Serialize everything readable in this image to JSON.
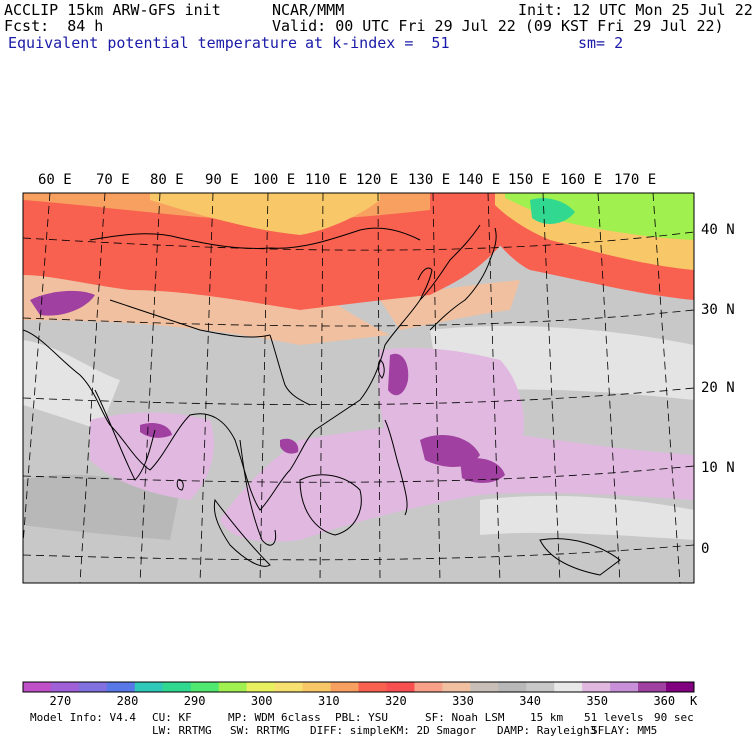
{
  "header": {
    "left1": "ACCLIP 15km ARW-GFS init",
    "center1": "NCAR/MMM",
    "right1": "Init: 12 UTC Mon 25 Jul 22",
    "left2": "Fcst:  84 h",
    "right2": "Valid: 00 UTC Fri 29 Jul 22 (09 KST Fri 29 Jul 22)",
    "field": "Equivalent potential temperature",
    "level": "at k-index =  51",
    "smooth": "sm= 2"
  },
  "map": {
    "lon_labels": [
      "60 E",
      "70 E",
      "80 E",
      "90 E",
      "100 E",
      "110 E",
      "120 E",
      "130 E",
      "140 E",
      "150 E",
      "160 E",
      "170 E"
    ],
    "lat_labels": [
      "40 N",
      "30 N",
      "20 N",
      "10 N",
      "0"
    ]
  },
  "colorbar": {
    "colors": [
      "#c050c8",
      "#a060d8",
      "#8070e0",
      "#5878e8",
      "#30c8b8",
      "#30d890",
      "#50e870",
      "#a0f050",
      "#e8f060",
      "#f8e070",
      "#f8c868",
      "#f8a060",
      "#f86050",
      "#f85050",
      "#f8a088",
      "#f0c0a0",
      "#c8c0b8",
      "#b8b8b8",
      "#c8c8c8",
      "#e8e8e8",
      "#e0b8e0",
      "#c890d8",
      "#a040a0",
      "#800080"
    ],
    "labels": [
      "270",
      "280",
      "290",
      "300",
      "310",
      "320",
      "330",
      "340",
      "350",
      "360"
    ],
    "unit": "K"
  },
  "footer": {
    "line1": [
      {
        "key": "model",
        "text": "Model Info: V4.4"
      },
      {
        "key": "cu",
        "text": "CU: KF"
      },
      {
        "key": "mp",
        "text": "MP: WDM 6class"
      },
      {
        "key": "pbl",
        "text": "PBL: YSU"
      },
      {
        "key": "sf",
        "text": "SF: Noah LSM"
      },
      {
        "key": "res",
        "text": "15 km"
      },
      {
        "key": "levels",
        "text": "51 levels"
      },
      {
        "key": "dt",
        "text": "90 sec"
      }
    ],
    "line2": [
      {
        "key": "lw",
        "text": "LW: RRTMG"
      },
      {
        "key": "sw",
        "text": "SW: RRTMG"
      },
      {
        "key": "diff",
        "text": "DIFF: simple"
      },
      {
        "key": "km",
        "text": "KM: 2D Smagor"
      },
      {
        "key": "damp",
        "text": "DAMP: Rayleigh3"
      },
      {
        "key": "sflay",
        "text": "SFLAY: MM5"
      }
    ]
  }
}
